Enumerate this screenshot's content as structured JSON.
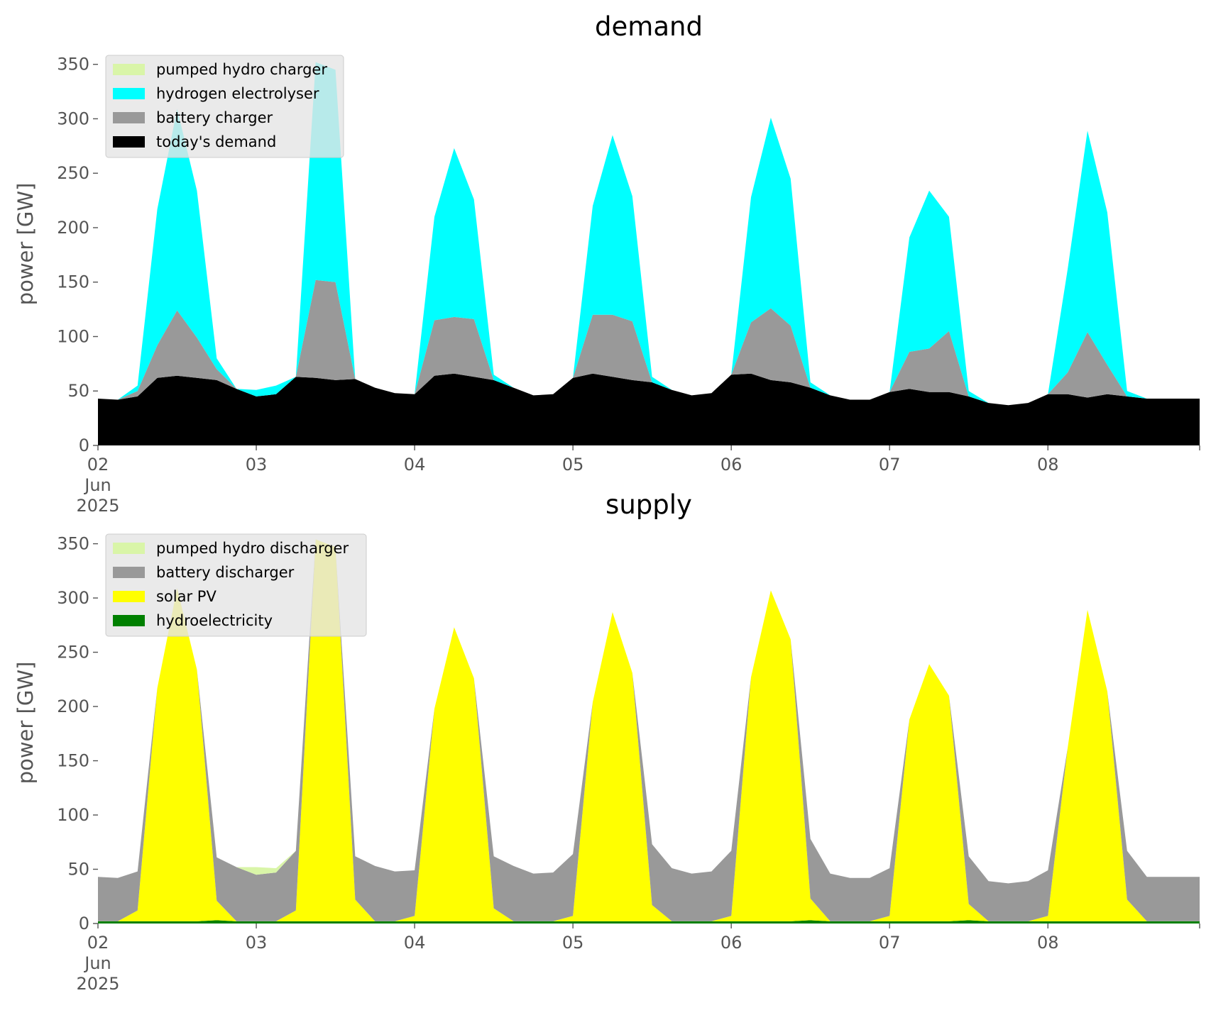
{
  "chart_data": [
    {
      "type": "area",
      "stacked": true,
      "title": "demand",
      "xlabel": "",
      "ylabel": "power [GW]",
      "x_start": "2025-06-02 00:00",
      "x_end": "2025-06-08 23:00",
      "sample_hours": 3,
      "x_ticks": [
        "02\nJun\n2025",
        "03",
        "04",
        "05",
        "06",
        "07",
        "08"
      ],
      "ylim": [
        0,
        370
      ],
      "y_ticks": [
        0,
        50,
        100,
        150,
        200,
        250,
        300,
        350
      ],
      "grid": false,
      "legend_position": "top-left",
      "series": [
        {
          "name": "today's demand",
          "color": "#000000",
          "values": [
            43,
            42,
            45,
            62,
            64,
            62,
            60,
            52,
            45,
            47,
            63,
            62,
            60,
            61,
            53,
            48,
            47,
            64,
            66,
            63,
            60,
            53,
            46,
            47,
            62,
            66,
            63,
            60,
            58,
            51,
            46,
            48,
            65,
            66,
            60,
            58,
            53,
            46,
            42,
            42,
            49,
            52,
            49,
            49,
            45,
            39,
            37,
            39,
            47,
            47,
            44,
            47,
            45,
            43
          ]
        },
        {
          "name": "battery charger",
          "color": "#999999",
          "values": [
            0,
            0,
            5,
            30,
            60,
            37,
            10,
            0,
            0,
            0,
            0,
            90,
            90,
            0,
            0,
            0,
            0,
            51,
            52,
            53,
            0,
            0,
            0,
            0,
            0,
            54,
            57,
            54,
            0,
            0,
            0,
            0,
            0,
            47,
            66,
            52,
            0,
            0,
            0,
            0,
            0,
            34,
            40,
            56,
            0,
            0,
            0,
            0,
            0,
            20,
            60,
            27,
            0,
            0
          ]
        },
        {
          "name": "hydrogen electrolyser",
          "color": "#00ffff",
          "values": [
            0,
            0,
            5,
            125,
            185,
            135,
            10,
            0,
            6,
            8,
            0,
            200,
            195,
            0,
            0,
            0,
            0,
            95,
            155,
            110,
            5,
            0,
            0,
            0,
            0,
            100,
            165,
            115,
            5,
            0,
            0,
            0,
            0,
            115,
            175,
            135,
            5,
            0,
            0,
            0,
            0,
            105,
            145,
            105,
            5,
            0,
            0,
            0,
            0,
            95,
            185,
            140,
            5,
            0
          ]
        },
        {
          "name": "pumped hydro charger",
          "color": "#d9f5a8",
          "values": [
            0,
            0,
            0,
            0,
            0,
            0,
            0,
            0,
            0,
            0,
            0,
            0,
            0,
            0,
            0,
            0,
            0,
            0,
            0,
            0,
            0,
            0,
            0,
            0,
            0,
            0,
            0,
            0,
            0,
            0,
            0,
            0,
            0,
            0,
            0,
            0,
            0,
            0,
            0,
            0,
            0,
            0,
            0,
            0,
            0,
            0,
            0,
            0,
            0,
            0,
            0,
            0,
            0,
            0
          ]
        }
      ],
      "legend_order": [
        "pumped hydro charger",
        "hydrogen electrolyser",
        "battery charger",
        "today's demand"
      ]
    },
    {
      "type": "area",
      "stacked": true,
      "title": "supply",
      "xlabel": "",
      "ylabel": "power [GW]",
      "x_start": "2025-06-02 00:00",
      "x_end": "2025-06-08 23:00",
      "sample_hours": 3,
      "x_ticks": [
        "02\nJun\n2025",
        "03",
        "04",
        "05",
        "06",
        "07",
        "08"
      ],
      "ylim": [
        0,
        370
      ],
      "y_ticks": [
        0,
        50,
        100,
        150,
        200,
        250,
        300,
        350
      ],
      "grid": false,
      "legend_position": "top-left",
      "series": [
        {
          "name": "hydroelectricity",
          "color": "#008000",
          "values": [
            2,
            2,
            2,
            2,
            2,
            2,
            3,
            2,
            2,
            2,
            2,
            2,
            2,
            2,
            2,
            2,
            2,
            2,
            2,
            2,
            2,
            2,
            2,
            2,
            2,
            2,
            2,
            2,
            2,
            2,
            2,
            2,
            2,
            2,
            2,
            2,
            3,
            2,
            2,
            2,
            2,
            2,
            2,
            2,
            3,
            2,
            2,
            2,
            2,
            2,
            2,
            2,
            2,
            2
          ]
        },
        {
          "name": "solar PV",
          "color": "#ffff00",
          "values": [
            0,
            0,
            10,
            215,
            307,
            232,
            18,
            0,
            0,
            0,
            10,
            352,
            345,
            20,
            0,
            0,
            5,
            196,
            271,
            224,
            12,
            0,
            0,
            0,
            5,
            202,
            285,
            229,
            15,
            0,
            0,
            0,
            5,
            225,
            305,
            260,
            20,
            0,
            0,
            0,
            5,
            186,
            237,
            208,
            15,
            0,
            0,
            0,
            5,
            160,
            287,
            212,
            20,
            0
          ]
        },
        {
          "name": "battery discharger",
          "color": "#999999",
          "values": [
            41,
            40,
            36,
            0,
            0,
            0,
            40,
            50,
            43,
            45,
            55,
            0,
            0,
            40,
            51,
            46,
            42,
            0,
            0,
            0,
            48,
            51,
            44,
            45,
            57,
            0,
            0,
            0,
            56,
            49,
            44,
            46,
            60,
            0,
            0,
            0,
            55,
            44,
            40,
            40,
            44,
            0,
            0,
            0,
            44,
            37,
            35,
            37,
            42,
            0,
            0,
            0,
            45,
            41
          ]
        },
        {
          "name": "pumped hydro discharger",
          "color": "#d9f5a8",
          "values": [
            0,
            0,
            0,
            0,
            0,
            0,
            0,
            0,
            7,
            4,
            0,
            0,
            0,
            0,
            0,
            0,
            0,
            0,
            0,
            0,
            0,
            0,
            0,
            0,
            0,
            0,
            0,
            0,
            0,
            0,
            0,
            0,
            0,
            0,
            0,
            0,
            0,
            0,
            0,
            0,
            0,
            0,
            0,
            0,
            0,
            0,
            0,
            0,
            0,
            0,
            0,
            0,
            0,
            0
          ]
        }
      ],
      "legend_order": [
        "pumped hydro discharger",
        "battery discharger",
        "solar PV",
        "hydroelectricity"
      ]
    }
  ]
}
